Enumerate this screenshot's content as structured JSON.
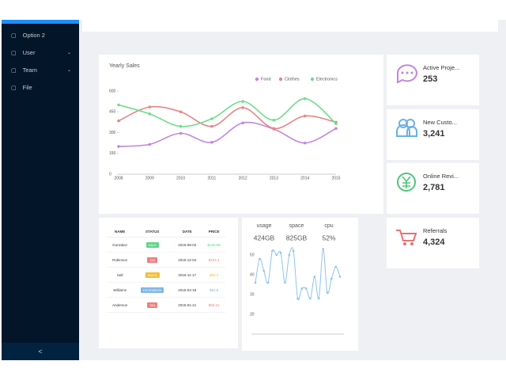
{
  "sidebar": {
    "menu": [
      "Option 2",
      "User",
      "Team",
      "File"
    ],
    "collapse": "<"
  },
  "cards": [
    {
      "title": "Active Proje...",
      "value": "253",
      "color": "#c386db"
    },
    {
      "title": "New Custo...",
      "value": "3,241",
      "color": "#6ab0e6"
    },
    {
      "title": "Online Revi...",
      "value": "2,781",
      "color": "#52c47a"
    },
    {
      "title": "Referrals",
      "value": "4,324",
      "color": "#e57373"
    }
  ],
  "table": {
    "columns": [
      "NAME",
      "STATUS",
      "DATE",
      "PRICE"
    ],
    "rows": [
      {
        "name": "Gonzalez",
        "status": "SALE",
        "date": "2015-08-02",
        "price": "$150.96",
        "color": "#5fd486"
      },
      {
        "name": "Robinson",
        "status": "TAX",
        "date": "2015-12-04",
        "price": "$102.1",
        "color": "#ef7f7f"
      },
      {
        "name": "Hall",
        "status": "BUILD",
        "date": "2016-11-17",
        "price": "$92.2",
        "color": "#f2bd3c"
      },
      {
        "name": "Williams",
        "status": "EXTENSION",
        "date": "2015-04-18",
        "price": "$62.5",
        "color": "#7fb6e6"
      },
      {
        "name": "Anderson",
        "status": "TAX",
        "date": "2015-01-21",
        "price": "$93.21",
        "color": "#ef7f7f"
      }
    ]
  },
  "stats": [
    {
      "label": "usage",
      "value": "424GB"
    },
    {
      "label": "space",
      "value": "825GB"
    },
    {
      "label": "cpu",
      "value": "52%"
    }
  ],
  "chart_data": [
    {
      "type": "line",
      "title": "Yearly Sales",
      "categories": [
        "2008",
        "2009",
        "2010",
        "2011",
        "2012",
        "2013",
        "2014",
        "2015"
      ],
      "series": [
        {
          "name": "Food",
          "color": "#c386db",
          "values": [
            200,
            215,
            295,
            230,
            370,
            325,
            225,
            330
          ]
        },
        {
          "name": "Clothes",
          "color": "#e58585",
          "values": [
            385,
            485,
            450,
            345,
            480,
            330,
            420,
            375
          ]
        },
        {
          "name": "Electronics",
          "color": "#6fdc8c",
          "values": [
            500,
            435,
            345,
            400,
            525,
            390,
            545,
            365
          ]
        }
      ],
      "ylim": [
        0,
        600
      ],
      "yticks": [
        0,
        150,
        300,
        450,
        600
      ],
      "legend": "top-right"
    },
    {
      "type": "line",
      "color": "#8fc3e8",
      "values": [
        36,
        48,
        42,
        36,
        52,
        50,
        51,
        36,
        50,
        52,
        28,
        33,
        33,
        28,
        39,
        28,
        53,
        31,
        38,
        44,
        39
      ],
      "ylim": [
        10,
        55
      ],
      "yticks": [
        20,
        30,
        40,
        50
      ]
    }
  ]
}
